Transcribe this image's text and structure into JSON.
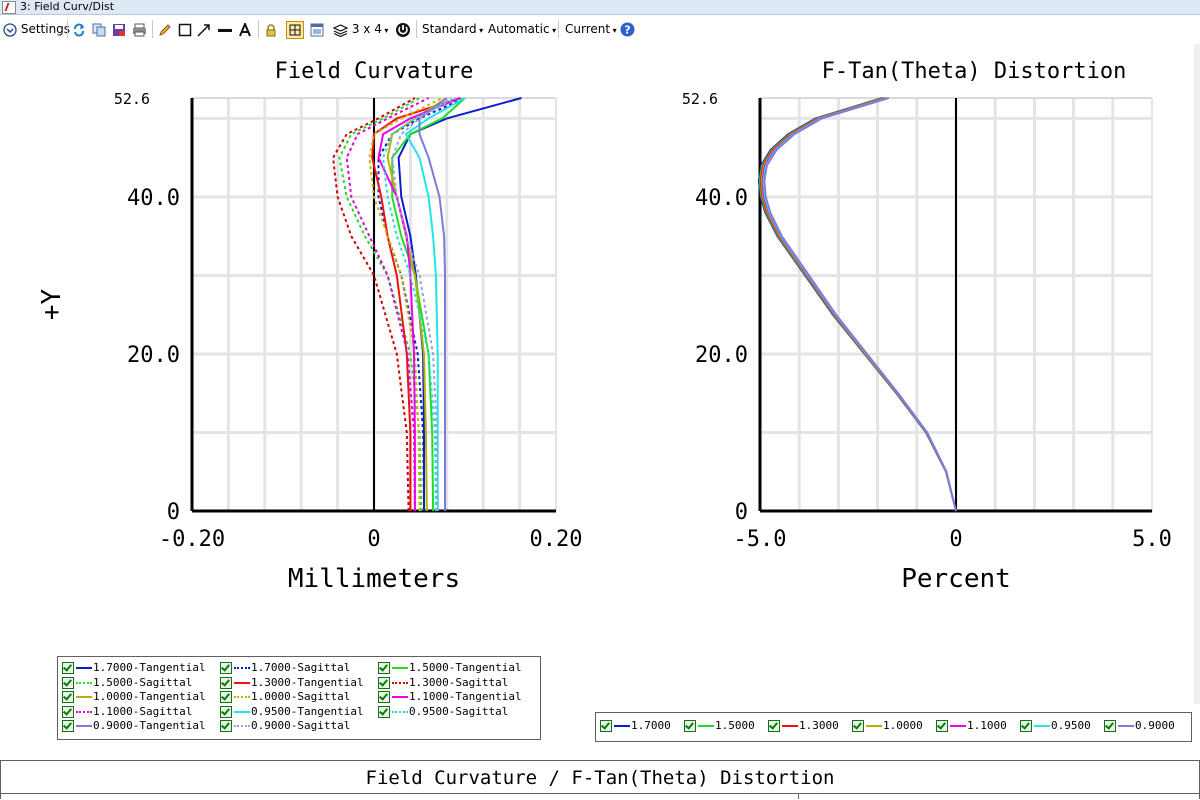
{
  "window": {
    "title": "3: Field Curv/Dist"
  },
  "toolbar": {
    "settings_label": "Settings",
    "layout_label": "3 x 4",
    "standard_label": "Standard",
    "automatic_label": "Automatic",
    "current_label": "Current",
    "icons": [
      "refresh-icon",
      "copy-icon",
      "save-icon",
      "print-icon",
      "pencil-icon",
      "rectangle-icon",
      "arrow-icon",
      "line-icon",
      "text-icon",
      "lock-icon",
      "fit-icon",
      "window-icon",
      "layers-icon",
      "power-icon",
      "help-icon"
    ]
  },
  "chart_data": [
    {
      "type": "line",
      "title": "Field Curvature",
      "xlabel": "Millimeters",
      "ylabel": "+Y",
      "xlim": [
        -0.2,
        0.2
      ],
      "ylim": [
        0,
        52.6
      ],
      "x_ticks": [
        "-0.20",
        "0",
        "0.20"
      ],
      "y_ticks": [
        "0",
        "20.0",
        "40.0",
        "52.6"
      ],
      "grid": true,
      "y": [
        0,
        10,
        20,
        30,
        35,
        40,
        45,
        48,
        50,
        52.6
      ],
      "series": [
        {
          "name": "1.7000-Tangential",
          "color": "#0b1fc9",
          "dash": false,
          "x": [
            0.055,
            0.055,
            0.054,
            0.046,
            0.04,
            0.03,
            0.027,
            0.04,
            0.08,
            0.162
          ]
        },
        {
          "name": "1.7000-Sagittal",
          "color": "#0b1fc9",
          "dash": true,
          "x": [
            0.055,
            0.054,
            0.048,
            0.03,
            0.015,
            0.005,
            0.005,
            0.02,
            0.05,
            0.1
          ]
        },
        {
          "name": "1.5000-Tangential",
          "color": "#22dd22",
          "dash": false,
          "x": [
            0.065,
            0.064,
            0.06,
            0.045,
            0.03,
            0.02,
            0.02,
            0.04,
            0.075,
            0.1
          ]
        },
        {
          "name": "1.5000-Sagittal",
          "color": "#22dd22",
          "dash": true,
          "x": [
            0.052,
            0.05,
            0.04,
            0.015,
            -0.01,
            -0.03,
            -0.038,
            -0.025,
            0.01,
            0.05
          ]
        },
        {
          "name": "1.3000-Tangential",
          "color": "#ee1111",
          "dash": false,
          "x": [
            0.04,
            0.04,
            0.036,
            0.025,
            0.015,
            0.008,
            -0.002,
            0.0,
            0.025,
            0.095
          ]
        },
        {
          "name": "1.3000-Sagittal",
          "color": "#cc0000",
          "dash": true,
          "x": [
            0.038,
            0.036,
            0.025,
            0.0,
            -0.025,
            -0.04,
            -0.045,
            -0.03,
            0.005,
            0.045
          ]
        },
        {
          "name": "1.0000-Tangential",
          "color": "#b8b000",
          "dash": false,
          "x": [
            0.058,
            0.057,
            0.055,
            0.045,
            0.035,
            0.025,
            0.015,
            0.02,
            0.045,
            0.08
          ]
        },
        {
          "name": "1.0000-Sagittal",
          "color": "#c8b400",
          "dash": true,
          "x": [
            0.05,
            0.049,
            0.045,
            0.03,
            0.015,
            0.0,
            -0.005,
            0.0,
            0.03,
            0.075
          ]
        },
        {
          "name": "1.1000-Tangential",
          "color": "#ee00ee",
          "dash": false,
          "x": [
            0.045,
            0.045,
            0.044,
            0.04,
            0.036,
            0.025,
            0.005,
            0.01,
            0.04,
            0.095
          ]
        },
        {
          "name": "1.1000-Sagittal",
          "color": "#dd00dd",
          "dash": true,
          "x": [
            0.045,
            0.044,
            0.037,
            0.015,
            -0.005,
            -0.025,
            -0.03,
            -0.018,
            0.015,
            0.06
          ]
        },
        {
          "name": "0.9500-Tangential",
          "color": "#22e6e6",
          "dash": false,
          "x": [
            0.07,
            0.07,
            0.07,
            0.068,
            0.065,
            0.06,
            0.05,
            0.035,
            0.06,
            0.1
          ]
        },
        {
          "name": "0.9500-Sagittal",
          "color": "#22dddd",
          "dash": true,
          "x": [
            0.068,
            0.067,
            0.06,
            0.04,
            0.025,
            0.015,
            0.01,
            0.02,
            0.045,
            0.09
          ]
        },
        {
          "name": "0.9000-Tangential",
          "color": "#7b7bdc",
          "dash": false,
          "x": [
            0.078,
            0.078,
            0.078,
            0.078,
            0.077,
            0.072,
            0.06,
            0.05,
            0.05,
            0.08
          ]
        },
        {
          "name": "0.9000-Sagittal",
          "color": "#9d9de0",
          "dash": true,
          "x": [
            0.07,
            0.069,
            0.065,
            0.05,
            0.035,
            0.025,
            0.02,
            0.03,
            0.05,
            0.085
          ]
        }
      ]
    },
    {
      "type": "line",
      "title": "F-Tan(Theta) Distortion",
      "xlabel": "Percent",
      "xlim": [
        -5.0,
        5.0
      ],
      "ylim": [
        0,
        52.6
      ],
      "x_ticks": [
        "-5.0",
        "0",
        "5.0"
      ],
      "y_ticks": [
        "0",
        "20.0",
        "40.0",
        "52.6"
      ],
      "grid": true,
      "y": [
        0,
        5,
        10,
        15,
        20,
        25,
        30,
        35,
        38,
        40,
        42,
        44,
        46,
        48,
        50,
        52.6
      ],
      "x": [
        0,
        -0.25,
        -0.75,
        -1.5,
        -2.3,
        -3.1,
        -3.8,
        -4.5,
        -4.8,
        -4.92,
        -4.96,
        -4.9,
        -4.65,
        -4.2,
        -3.5,
        -1.8
      ],
      "series": [
        {
          "name": "1.7000",
          "color": "#0b1fc9"
        },
        {
          "name": "1.5000",
          "color": "#22dd22"
        },
        {
          "name": "1.3000",
          "color": "#ee1111"
        },
        {
          "name": "1.0000",
          "color": "#b8b000"
        },
        {
          "name": "1.1000",
          "color": "#ee00ee"
        },
        {
          "name": "0.9500",
          "color": "#22e6e6"
        },
        {
          "name": "0.9000",
          "color": "#7b7bdc"
        }
      ]
    }
  ],
  "footer": {
    "title": "Field Curvature / F-Tan(Theta) Distortion"
  }
}
